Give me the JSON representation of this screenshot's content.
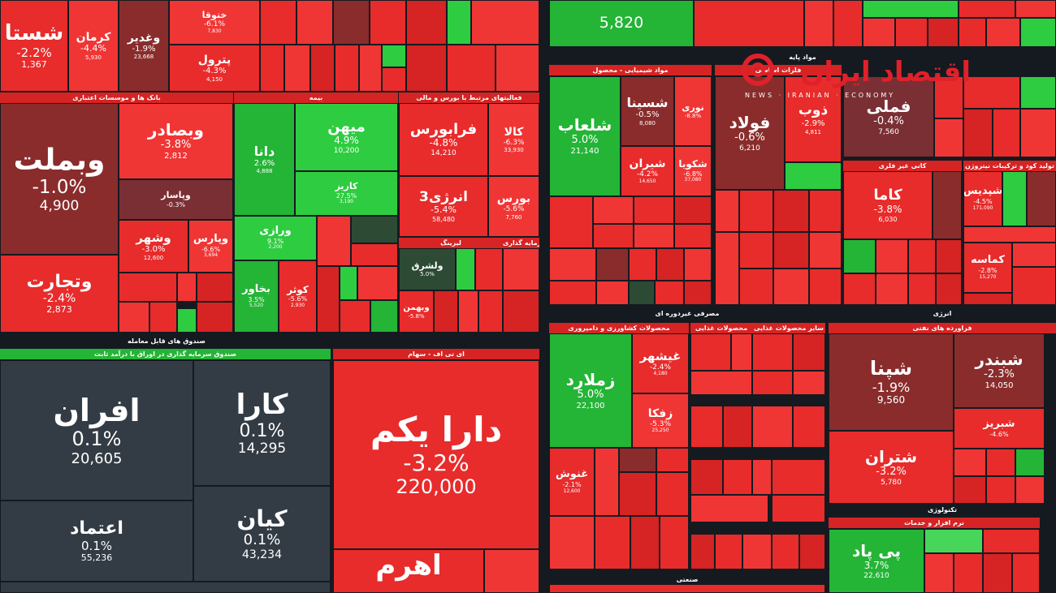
{
  "tiles": {
    "shasta": {
      "name": "شستا",
      "pct": "-2.2%",
      "price": "1,367"
    },
    "kerman": {
      "name": "کرمان",
      "pct": "-4.4%",
      "price": "5,930"
    },
    "vaghadir": {
      "name": "وغدیر",
      "pct": "-1.9%",
      "price": "23,668"
    },
    "petrol": {
      "name": "پترول",
      "pct": "-4.3%",
      "price": "4,150"
    },
    "khtoghe": {
      "name": "ختوقا",
      "pct": "-6.1%",
      "price": "7,830"
    },
    "unk_top": {
      "pct": "",
      "price": "5,820"
    },
    "vebmelat": {
      "name": "وبملت",
      "pct": "-1.0%",
      "price": "4,900"
    },
    "vetejarat": {
      "name": "وتجارت",
      "pct": "-2.4%",
      "price": "2,873"
    },
    "vebsader": {
      "name": "وبصادر",
      "pct": "-3.8%",
      "price": "2,812"
    },
    "vepasar": {
      "name": "وپاسار",
      "pct": "-0.3%"
    },
    "vashahr": {
      "name": "وشهر",
      "pct": "-3.0%",
      "price": "12,600"
    },
    "vebaris": {
      "name": "وپارس",
      "pct": "-6.6%",
      "price": "3,694"
    },
    "mihan": {
      "name": "میهن",
      "pct": "4.9%",
      "price": "10,200"
    },
    "dana": {
      "name": "دانا",
      "pct": "2.6%",
      "price": "4,888"
    },
    "kariz": {
      "name": "کاریز",
      "pct": "27.5%",
      "price": "3,190"
    },
    "varazi": {
      "name": "ورازی",
      "pct": "9.1%",
      "price": "2,200"
    },
    "bekhavar": {
      "name": "بخاور",
      "pct": "3.5%",
      "price": "5,520"
    },
    "kosar": {
      "name": "کوثر",
      "pct": "-5.6%",
      "price": "2,930"
    },
    "farabours": {
      "name": "فرابورس",
      "pct": "-4.8%",
      "price": "14,210"
    },
    "kala": {
      "name": "کالا",
      "pct": "-6.3%",
      "price": "33,930"
    },
    "energy3": {
      "name": "انرژی3",
      "pct": "-5.4%",
      "price": "58,480"
    },
    "bours": {
      "name": "بورس",
      "pct": "-5.6%",
      "price": "7,760"
    },
    "velsharq": {
      "name": "ولشرق",
      "pct": "5.0%"
    },
    "vebhman": {
      "name": "وبهمن",
      "pct": "-5.8%"
    },
    "afran": {
      "name": "افران",
      "pct": "0.1%",
      "price": "20,605"
    },
    "kara": {
      "name": "کارا",
      "pct": "0.1%",
      "price": "14,295"
    },
    "etemad": {
      "name": "اعتماد",
      "pct": "0.1%",
      "price": "55,236"
    },
    "kian": {
      "name": "کیان",
      "pct": "0.1%",
      "price": "43,234"
    },
    "darayekom": {
      "name": "دارا یکم",
      "pct": "-3.2%",
      "price": "220,000"
    },
    "ahrom": {
      "name": "اهرم"
    },
    "shelab": {
      "name": "شلعاب",
      "pct": "5.0%",
      "price": "21,140"
    },
    "shesina": {
      "name": "شسینا",
      "pct": "-0.5%",
      "price": "8,080"
    },
    "noori": {
      "name": "نوری",
      "pct": "-8.8%"
    },
    "shiran": {
      "name": "شیران",
      "pct": "-4.2%",
      "price": "14,650"
    },
    "shekoya": {
      "name": "شکویا",
      "pct": "-6.8%",
      "price": "37,080"
    },
    "foolad": {
      "name": "فولاد",
      "pct": "-0.6%",
      "price": "6,210"
    },
    "zob": {
      "name": "ذوب",
      "pct": "-2.9%",
      "price": "4,811"
    },
    "fameli": {
      "name": "فملی",
      "pct": "-0.4%",
      "price": "7,560"
    },
    "kama": {
      "name": "کاما",
      "pct": "-3.8%",
      "price": "6,030"
    },
    "shidis": {
      "name": "شپدیس",
      "pct": "-4.5%",
      "price": "171,090"
    },
    "kemamse": {
      "name": "کماسه",
      "pct": "-2.8%",
      "price": "15,270"
    },
    "zamlard": {
      "name": "زملارد",
      "pct": "5.0%",
      "price": "22,100"
    },
    "ghishahr": {
      "name": "غیشهر",
      "pct": "-2.4%",
      "price": "4,180"
    },
    "zafka": {
      "name": "زفکا",
      "pct": "-5.3%",
      "price": "25,250"
    },
    "ghenosh": {
      "name": "غنوش",
      "pct": "-2.1%",
      "price": "12,600"
    },
    "shepna": {
      "name": "شپنا",
      "pct": "-1.9%",
      "price": "9,560"
    },
    "shebandar": {
      "name": "شبندر",
      "pct": "-2.3%",
      "price": "14,050"
    },
    "shebriz": {
      "name": "شبریز",
      "pct": "-4.6%"
    },
    "shetran": {
      "name": "شتران",
      "pct": "-3.2%",
      "price": "5,780"
    },
    "pipad": {
      "name": "پی پاد",
      "pct": "3.7%",
      "price": "22,610"
    }
  },
  "headers": {
    "banks": "بانک ها و موسسات اعتباری",
    "insurance": "بیمه",
    "fin_services": "فعالیتهای مرتبط با بورس و مالی",
    "leasing": "لیزینگ",
    "investment": "سرمایه گذاری",
    "funds": "صندوق های قابل معامله",
    "fixed_income": "صندوق سرمایه گذاری در اوراق با درآمد ثابت",
    "etf": "ای تی اف - سهام",
    "basic_materials": "مواد پایه",
    "chemical": "مواد شیمیایی - محصول",
    "metals": "فلزات اساسی",
    "non_metal": "کانی غیر فلزی",
    "fertilizer": "تولید کود و ترکیبات نیتروژن",
    "consumer": "مصرفی غیردوره ای",
    "agri": "محصولات کشاورزی و دامپروری",
    "food": "محصولات غذایی",
    "other_food": "سایر محصولات غذایی",
    "energy": "انرژی",
    "refinery": "فراورده های نفتی",
    "technology": "تکنولوژی",
    "software": "نرم افزار و خدمات",
    "industrial": "صنعتی",
    "metal_products": "محصولات فلزی"
  },
  "logo": {
    "text": "اقتصاد ایران",
    "subtitle": "NEWS · IRANIAN · ECONOMY"
  },
  "colors": {
    "red": "#e82b2b",
    "green": "#2ecc40",
    "dark": "#333b44",
    "dark_red": "#8a2c2c",
    "dark_green": "#2d4a35",
    "background": "#141a20",
    "logo": "#e0202a"
  }
}
